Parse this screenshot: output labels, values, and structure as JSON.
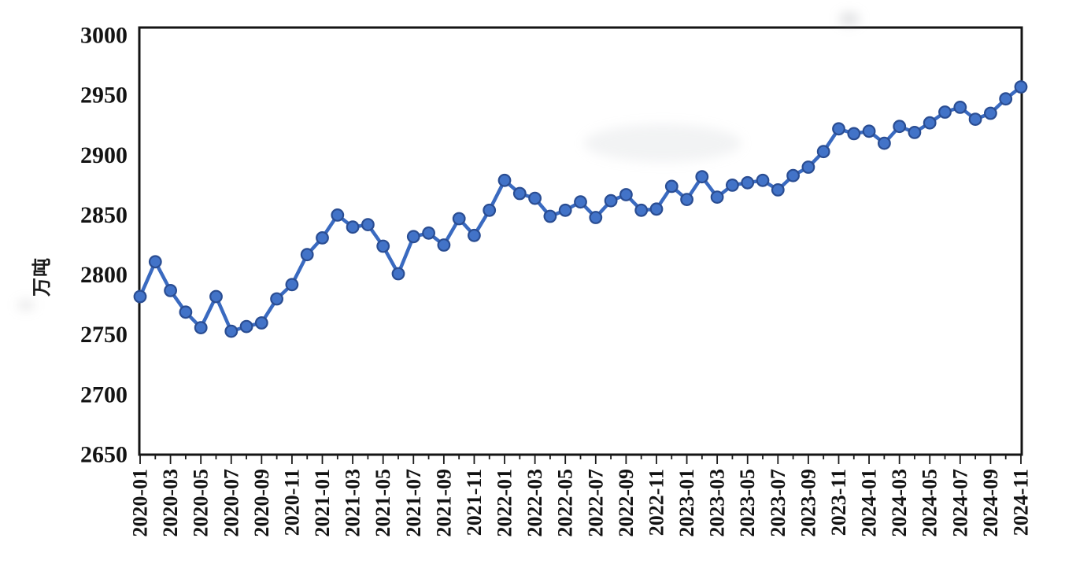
{
  "chart_data": {
    "type": "line",
    "title": "",
    "xlabel": "",
    "ylabel": "万吨",
    "ylim": [
      2650,
      3000
    ],
    "ytick_interval": 50,
    "yticks": [
      2650,
      2700,
      2750,
      2800,
      2850,
      2900,
      2950,
      3000
    ],
    "grid": "off",
    "legend": "none",
    "line_color": "#3a6ac0",
    "marker_fill": "#4273c8",
    "marker_border": "#2a4d92",
    "x": [
      "2020-01",
      "2020-02",
      "2020-03",
      "2020-04",
      "2020-05",
      "2020-06",
      "2020-07",
      "2020-08",
      "2020-09",
      "2020-10",
      "2020-11",
      "2020-12",
      "2021-01",
      "2021-02",
      "2021-03",
      "2021-04",
      "2021-05",
      "2021-06",
      "2021-07",
      "2021-08",
      "2021-09",
      "2021-10",
      "2021-11",
      "2021-12",
      "2022-01",
      "2022-02",
      "2022-03",
      "2022-04",
      "2022-05",
      "2022-06",
      "2022-07",
      "2022-08",
      "2022-09",
      "2022-10",
      "2022-11",
      "2022-12",
      "2023-01",
      "2023-02",
      "2023-03",
      "2023-04",
      "2023-05",
      "2023-06",
      "2023-07",
      "2023-08",
      "2023-09",
      "2023-10",
      "2023-11",
      "2023-12",
      "2024-01",
      "2024-02",
      "2024-03",
      "2024-04",
      "2024-05",
      "2024-06",
      "2024-07",
      "2024-08",
      "2024-09",
      "2024-10",
      "2024-11"
    ],
    "values": [
      2782,
      2811,
      2787,
      2769,
      2756,
      2782,
      2753,
      2757,
      2760,
      2780,
      2792,
      2817,
      2831,
      2850,
      2840,
      2842,
      2824,
      2801,
      2832,
      2835,
      2825,
      2847,
      2833,
      2854,
      2879,
      2868,
      2864,
      2849,
      2854,
      2861,
      2848,
      2862,
      2867,
      2854,
      2855,
      2874,
      2863,
      2882,
      2865,
      2875,
      2877,
      2879,
      2871,
      2883,
      2890,
      2903,
      2922,
      2918,
      2920,
      2910,
      2924,
      2919,
      2927,
      2936,
      2940,
      2930,
      2935,
      2947,
      2957
    ],
    "xtick_labels": [
      "2020-01",
      "2020-03",
      "2020-05",
      "2020-07",
      "2020-09",
      "2020-11",
      "2021-01",
      "2021-03",
      "2021-05",
      "2021-07",
      "2021-09",
      "2021-11",
      "2022-01",
      "2022-03",
      "2022-05",
      "2022-07",
      "2022-09",
      "2022-11",
      "2023-01",
      "2023-03",
      "2023-05",
      "2023-07",
      "2023-09",
      "2023-11",
      "2024-01",
      "2024-03",
      "2024-05",
      "2024-07",
      "2024-09",
      "2024-11"
    ]
  }
}
